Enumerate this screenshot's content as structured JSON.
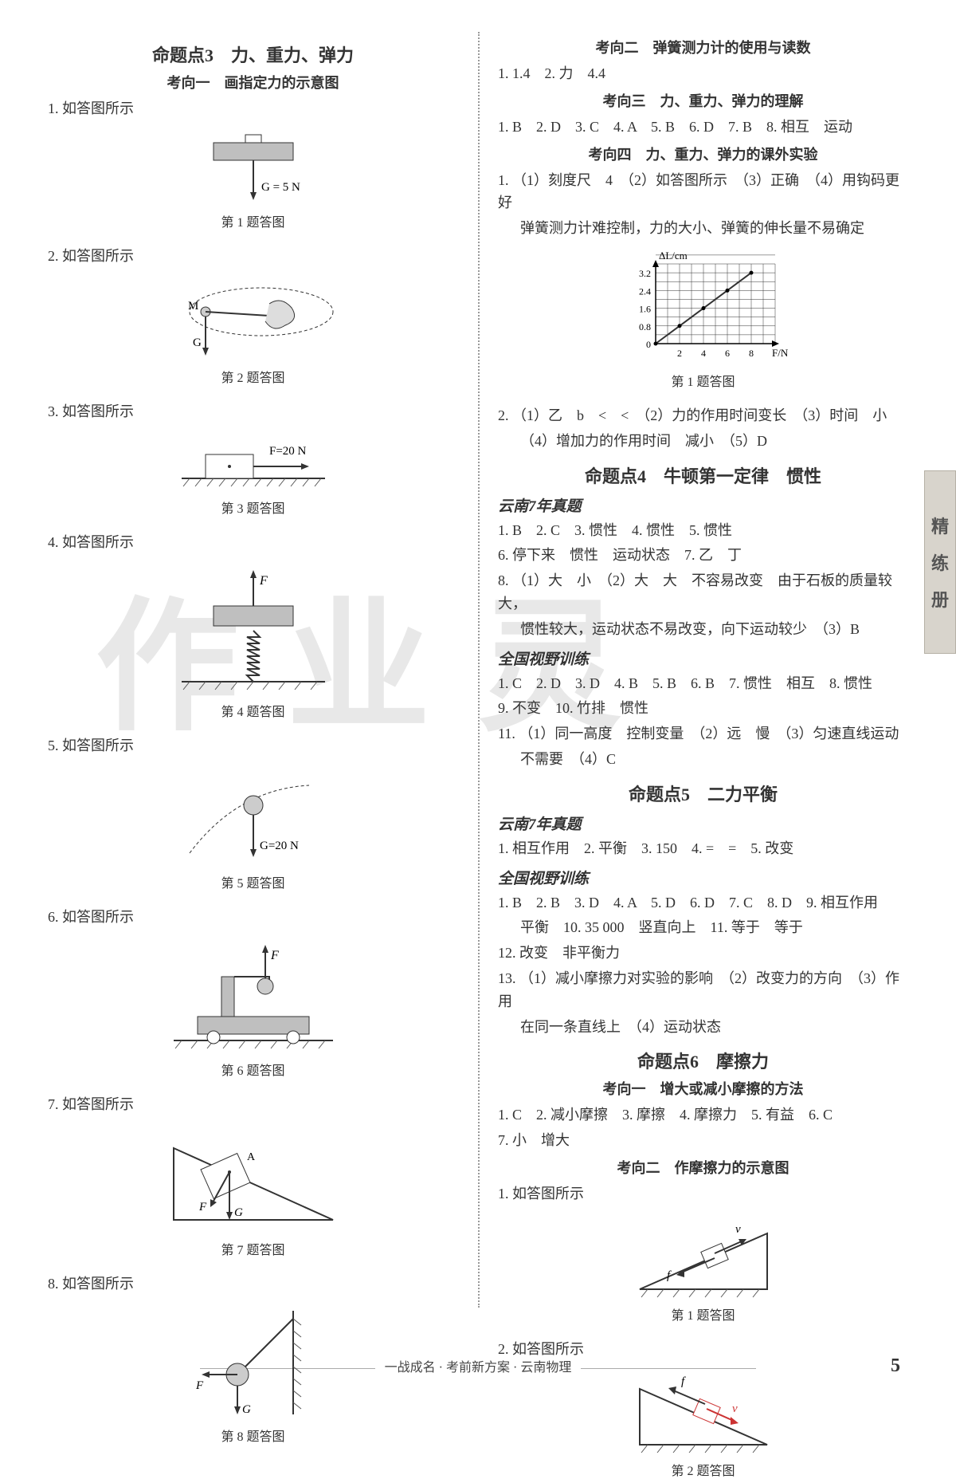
{
  "watermark": "作业灵",
  "sideTab": [
    "精",
    "练",
    "册"
  ],
  "footer": "一战成名 · 考前新方案 · 云南物理",
  "pageNum": "5",
  "colors": {
    "text": "#333333",
    "figStroke": "#333333",
    "figFill": "#bfbfbf",
    "red": "#cc3333",
    "hatch": "#555555"
  },
  "left": {
    "titleMajor": "命题点3　力、重力、弹力",
    "titleSub": "考向一　画指定力的示意图",
    "items": [
      {
        "num": "1.",
        "text": "如答图所示",
        "caption": "第 1 题答图",
        "fig": "fig1",
        "G": "G = 5 N"
      },
      {
        "num": "2.",
        "text": "如答图所示",
        "caption": "第 2 题答图",
        "fig": "fig2",
        "M": "M",
        "G": "G"
      },
      {
        "num": "3.",
        "text": "如答图所示",
        "caption": "第 3 题答图",
        "fig": "fig3",
        "F": "F=20 N"
      },
      {
        "num": "4.",
        "text": "如答图所示",
        "caption": "第 4 题答图",
        "fig": "fig4",
        "F": "F"
      },
      {
        "num": "5.",
        "text": "如答图所示",
        "caption": "第 5 题答图",
        "fig": "fig5",
        "G": "G=20 N"
      },
      {
        "num": "6.",
        "text": "如答图所示",
        "caption": "第 6 题答图",
        "fig": "fig6",
        "F": "F"
      },
      {
        "num": "7.",
        "text": "如答图所示",
        "caption": "第 7 题答图",
        "fig": "fig7",
        "F": "F",
        "G": "G",
        "A": "A"
      },
      {
        "num": "8.",
        "text": "如答图所示",
        "caption": "第 8 题答图",
        "fig": "fig8",
        "F": "F",
        "G": "G"
      }
    ]
  },
  "right": {
    "sections": [
      {
        "type": "sub",
        "text": "考向二　弹簧测力计的使用与读数"
      },
      {
        "type": "line",
        "text": "1. 1.4　2. 力　4.4"
      },
      {
        "type": "sub",
        "text": "考向三　力、重力、弹力的理解"
      },
      {
        "type": "line",
        "text": "1. B　2. D　3. C　4. A　5. B　6. D　7. B　8. 相互　运动"
      },
      {
        "type": "sub",
        "text": "考向四　力、重力、弹力的课外实验"
      },
      {
        "type": "line",
        "text": "1. （1）刻度尺　4　（2）如答图所示　（3）正确　（4）用钩码更好"
      },
      {
        "type": "line-indent",
        "text": "弹簧测力计难控制，力的大小、弹簧的伸长量不易确定"
      },
      {
        "type": "chart",
        "caption": "第 1 题答图"
      },
      {
        "type": "line",
        "text": "2. （1）乙　b　<　<　（2）力的作用时间变长　（3）时间　小"
      },
      {
        "type": "line-indent",
        "text": "（4）增加力的作用时间　减小　（5）D"
      },
      {
        "type": "major",
        "text": "命题点4　牛顿第一定律　惯性"
      },
      {
        "type": "section",
        "text": "云南7年真题"
      },
      {
        "type": "line",
        "text": "1. B　2. C　3. 惯性　4. 惯性　5. 惯性"
      },
      {
        "type": "line",
        "text": "6. 停下来　惯性　运动状态　7. 乙　丁"
      },
      {
        "type": "line",
        "text": "8. （1）大　小　（2）大　大　不容易改变　由于石板的质量较大，"
      },
      {
        "type": "line-indent",
        "text": "惯性较大，运动状态不易改变，向下运动较少　（3）B"
      },
      {
        "type": "section",
        "text": "全国视野训练"
      },
      {
        "type": "line",
        "text": "1. C　2. D　3. D　4. B　5. B　6. B　7. 惯性　相互　8. 惯性"
      },
      {
        "type": "line",
        "text": "9. 不变　10. 竹排　惯性"
      },
      {
        "type": "line",
        "text": "11. （1）同一高度　控制变量　（2）远　慢　（3）匀速直线运动"
      },
      {
        "type": "line-indent",
        "text": "不需要　（4）C"
      },
      {
        "type": "major",
        "text": "命题点5　二力平衡"
      },
      {
        "type": "section",
        "text": "云南7年真题"
      },
      {
        "type": "line",
        "text": "1. 相互作用　2. 平衡　3. 150　4. =　=　5. 改变"
      },
      {
        "type": "section",
        "text": "全国视野训练"
      },
      {
        "type": "line",
        "text": "1. B　2. B　3. D　4. A　5. D　6. D　7. C　8. D　9. 相互作用"
      },
      {
        "type": "line-indent",
        "text": "平衡　10. 35 000　竖直向上　11. 等于　等于"
      },
      {
        "type": "line",
        "text": "12. 改变　非平衡力"
      },
      {
        "type": "line",
        "text": "13. （1）减小摩擦力对实验的影响　（2）改变力的方向　（3）作用"
      },
      {
        "type": "line-indent",
        "text": "在同一条直线上　（4）运动状态"
      },
      {
        "type": "major",
        "text": "命题点6　摩擦力"
      },
      {
        "type": "sub",
        "text": "考向一　增大或减小摩擦的方法"
      },
      {
        "type": "line",
        "text": "1. C　2. 减小摩擦　3. 摩擦　4. 摩擦力　5. 有益　6. C"
      },
      {
        "type": "line",
        "text": "7. 小　增大"
      },
      {
        "type": "sub",
        "text": "考向二　作摩擦力的示意图"
      },
      {
        "type": "line",
        "text": "1. 如答图所示"
      },
      {
        "type": "figR1",
        "caption": "第 1 题答图",
        "f": "f",
        "v": "v"
      },
      {
        "type": "line",
        "text": "2. 如答图所示"
      },
      {
        "type": "figR2",
        "caption": "第 2 题答图",
        "f": "f",
        "v": "v"
      }
    ],
    "chart": {
      "ylabel": "ΔL/cm",
      "xlabel": "F/N",
      "yticks": [
        "0",
        "0.8",
        "1.6",
        "2.4",
        "3.2"
      ],
      "xticks": [
        "2",
        "4",
        "6",
        "8"
      ],
      "points": [
        [
          0,
          0
        ],
        [
          2,
          0.8
        ],
        [
          4,
          1.6
        ],
        [
          6,
          2.4
        ],
        [
          8,
          3.2
        ]
      ],
      "xlim": [
        0,
        10
      ],
      "ylim": [
        0,
        3.6
      ],
      "gridColor": "#333",
      "lineColor": "#333"
    }
  }
}
